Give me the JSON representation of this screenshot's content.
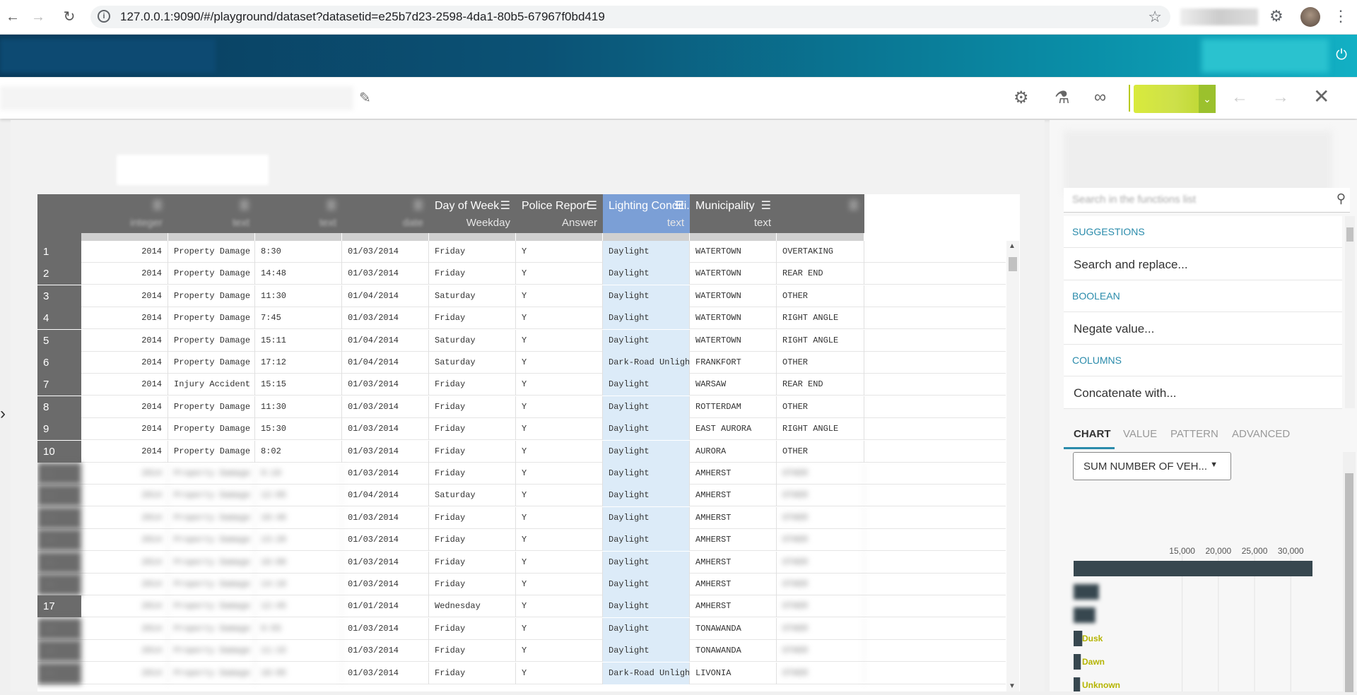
{
  "browser": {
    "url": "127.0.0.1:9090/#/playground/dataset?datasetid=e25b7d23-2598-4da1-80b5-67967f0bd419"
  },
  "grid": {
    "columns": [
      {
        "name": "",
        "type": "integer",
        "blurred": true
      },
      {
        "name": "",
        "type": "text",
        "blurred": true
      },
      {
        "name": "",
        "type": "text",
        "blurred": true
      },
      {
        "name": "",
        "type": "date",
        "blurred": true
      },
      {
        "name": "Day of Week",
        "type": "Weekday",
        "blurred": false
      },
      {
        "name": "Police Report",
        "type": "Answer",
        "blurred": false
      },
      {
        "name": "Lighting Conditi...",
        "type": "text",
        "blurred": false,
        "selected": true
      },
      {
        "name": "Municipality",
        "type": "text",
        "blurred": false
      },
      {
        "name": "",
        "type": "",
        "blurred": true
      }
    ],
    "rows": [
      [
        "1",
        "2014",
        "Property Damage Accident",
        "8:30",
        "01/03/2014",
        "Friday",
        "Y",
        "Daylight",
        "WATERTOWN",
        "OVERTAKING"
      ],
      [
        "2",
        "2014",
        "Property Damage & Injury",
        "14:48",
        "01/03/2014",
        "Friday",
        "Y",
        "Daylight",
        "WATERTOWN",
        "REAR END"
      ],
      [
        "3",
        "2014",
        "Property Damage & Injury",
        "11:30",
        "01/04/2014",
        "Saturday",
        "Y",
        "Daylight",
        "WATERTOWN",
        "OTHER"
      ],
      [
        "4",
        "2014",
        "Property Damage Accident",
        "7:45",
        "01/03/2014",
        "Friday",
        "Y",
        "Daylight",
        "WATERTOWN",
        "RIGHT ANGLE"
      ],
      [
        "5",
        "2014",
        "Property Damage Accident",
        "15:11",
        "01/04/2014",
        "Saturday",
        "Y",
        "Daylight",
        "WATERTOWN",
        "RIGHT ANGLE"
      ],
      [
        "6",
        "2014",
        "Property Damage Accident",
        "17:12",
        "01/04/2014",
        "Saturday",
        "Y",
        "Dark-Road Unlighted",
        "FRANKFORT",
        "OTHER"
      ],
      [
        "7",
        "2014",
        "Injury Accident",
        "15:15",
        "01/03/2014",
        "Friday",
        "Y",
        "Daylight",
        "WARSAW",
        "REAR END"
      ],
      [
        "8",
        "2014",
        "Property Damage Accident",
        "11:30",
        "01/03/2014",
        "Friday",
        "Y",
        "Daylight",
        "ROTTERDAM",
        "OTHER"
      ],
      [
        "9",
        "2014",
        "Property Damage Accident",
        "15:30",
        "01/03/2014",
        "Friday",
        "Y",
        "Daylight",
        "EAST AURORA",
        "RIGHT ANGLE"
      ],
      [
        "10",
        "2014",
        "Property Damage & Injury",
        "8:02",
        "01/03/2014",
        "Friday",
        "Y",
        "Daylight",
        "AURORA",
        "OTHER"
      ],
      [
        "11",
        "2014",
        "Property Damage Accident",
        "9:10",
        "01/03/2014",
        "Friday",
        "Y",
        "Daylight",
        "AMHERST",
        "OTHER"
      ],
      [
        "12",
        "2014",
        "Property Damage Accident",
        "12:05",
        "01/04/2014",
        "Saturday",
        "Y",
        "Daylight",
        "AMHERST",
        "OTHER"
      ],
      [
        "13",
        "2014",
        "Property Damage Accident",
        "10:40",
        "01/03/2014",
        "Friday",
        "Y",
        "Daylight",
        "AMHERST",
        "OTHER"
      ],
      [
        "14",
        "2014",
        "Property Damage Accident",
        "13:20",
        "01/03/2014",
        "Friday",
        "Y",
        "Daylight",
        "AMHERST",
        "OTHER"
      ],
      [
        "15",
        "2014",
        "Property Damage Accident",
        "16:00",
        "01/03/2014",
        "Friday",
        "Y",
        "Daylight",
        "AMHERST",
        "OTHER"
      ],
      [
        "16",
        "2014",
        "Property Damage Accident",
        "14:10",
        "01/03/2014",
        "Friday",
        "Y",
        "Daylight",
        "AMHERST",
        "OTHER"
      ],
      [
        "17",
        "2014",
        "Property Damage Accident",
        "12:45",
        "01/01/2014",
        "Wednesday",
        "Y",
        "Daylight",
        "AMHERST",
        "OTHER"
      ],
      [
        "18",
        "2014",
        "Property Damage Accident",
        "9:55",
        "01/03/2014",
        "Friday",
        "Y",
        "Daylight",
        "TONAWANDA",
        "OTHER"
      ],
      [
        "19",
        "2014",
        "Property Damage Accident",
        "11:15",
        "01/03/2014",
        "Friday",
        "Y",
        "Daylight",
        "TONAWANDA",
        "OTHER"
      ],
      [
        "20",
        "2014",
        "Property Damage Accident",
        "18:05",
        "01/03/2014",
        "Friday",
        "Y",
        "Dark-Road Unlighted",
        "LIVONIA",
        "OTHER"
      ]
    ]
  },
  "panel": {
    "search_placeholder": "Search in the functions list",
    "categories": [
      {
        "label": "SUGGESTIONS",
        "item": "Search and replace..."
      },
      {
        "label": "BOOLEAN",
        "item": "Negate value..."
      },
      {
        "label": "COLUMNS",
        "item": "Concatenate with..."
      }
    ],
    "tabs": [
      "CHART",
      "VALUE",
      "PATTERN",
      "ADVANCED"
    ],
    "chart_select": "SUM NUMBER OF VEH..."
  },
  "chart_data": {
    "type": "bar",
    "orientation": "horizontal",
    "categories": [
      "Daylight",
      "Dark-Road Lighted",
      "Dark-Road Unlighted",
      "Dusk",
      "Dawn",
      "Unknown"
    ],
    "values": [
      33000,
      3500,
      3000,
      1200,
      1000,
      900
    ],
    "x_ticks": [
      "15,000",
      "20,000",
      "25,000",
      "30,000"
    ],
    "xlim": [
      0,
      33000
    ],
    "visible_labels": [
      "Dusk",
      "Dawn",
      "Unknown"
    ],
    "bar_color": "#37474f",
    "label_color": "#b5b400"
  },
  "colors": {
    "header_gray": "#6b6b6b",
    "selected_header": "#7b9fd6",
    "selected_cell": "#dcebf8",
    "accent": "#2a8bab"
  }
}
